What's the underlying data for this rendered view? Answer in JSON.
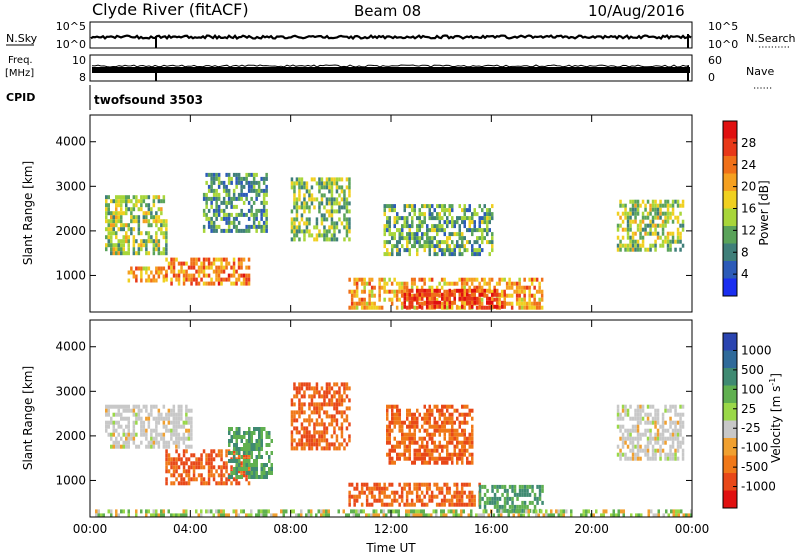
{
  "header": {
    "station": "Clyde River (fitACF)",
    "beam": "Beam 08",
    "date": "10/Aug/2016"
  },
  "aux_panels": {
    "nsky_label": "N.Sky",
    "nsky_ticks": [
      "10^5",
      "10^0"
    ],
    "nsearch_label": "N.Search",
    "nsearch_ticks": [
      "10^5",
      "10^0"
    ],
    "freq_label": "Freq.",
    "freq_unit": "[MHz]",
    "freq_ticks": [
      "10",
      "8"
    ],
    "nave_label": "Nave",
    "nave_ticks": [
      "60",
      "0"
    ],
    "cpid_label": "CPID",
    "cpid_value": "twofsound 3503"
  },
  "chart_data": [
    {
      "type": "heatmap",
      "panel": "power",
      "xlabel": "",
      "ylabel": "Slant Range [km]",
      "x_ticks": [
        "00:00",
        "04:00",
        "08:00",
        "12:00",
        "16:00",
        "20:00",
        "00:00"
      ],
      "xlim_hours": [
        0,
        24
      ],
      "y_ticks": [
        1000,
        2000,
        3000,
        4000
      ],
      "ylim_km": [
        180,
        4600
      ],
      "colorbar": {
        "label": "Power [dB]",
        "ticks": [
          4,
          8,
          12,
          16,
          20,
          24,
          28
        ],
        "range": [
          0,
          32
        ],
        "colors": [
          "#1a2ef0",
          "#2c5bb8",
          "#3f7f7a",
          "#5aa35a",
          "#a8d63a",
          "#f0d020",
          "#f5a020",
          "#f07018",
          "#e83818",
          "#e01010"
        ]
      },
      "regions": [
        {
          "t": [
            0.6,
            3.0
          ],
          "r": [
            1500,
            2800
          ],
          "level": 14
        },
        {
          "t": [
            1.5,
            3.0
          ],
          "r": [
            850,
            1200
          ],
          "level": 20
        },
        {
          "t": [
            3.0,
            6.3
          ],
          "r": [
            850,
            1400
          ],
          "level": 23
        },
        {
          "t": [
            4.5,
            7.0
          ],
          "r": [
            2000,
            3300
          ],
          "level": 10
        },
        {
          "t": [
            8.0,
            10.3
          ],
          "r": [
            1800,
            3200
          ],
          "level": 13
        },
        {
          "t": [
            10.3,
            18.0
          ],
          "r": [
            250,
            950
          ],
          "level": 21
        },
        {
          "t": [
            12.5,
            16.5
          ],
          "r": [
            300,
            700
          ],
          "level": 27
        },
        {
          "t": [
            11.7,
            16.0
          ],
          "r": [
            1500,
            2600
          ],
          "level": 11
        },
        {
          "t": [
            21.0,
            23.6
          ],
          "r": [
            1600,
            2700
          ],
          "level": 14
        }
      ]
    },
    {
      "type": "heatmap",
      "panel": "velocity",
      "xlabel": "Time UT",
      "ylabel": "Slant Range [km]",
      "x_ticks": [
        "00:00",
        "04:00",
        "08:00",
        "12:00",
        "16:00",
        "20:00",
        "00:00"
      ],
      "xlim_hours": [
        0,
        24
      ],
      "y_ticks": [
        1000,
        2000,
        3000,
        4000
      ],
      "ylim_km": [
        180,
        4600
      ],
      "colorbar": {
        "label": "Velocity [m s",
        "label_superscript": "-1",
        "label_close": "]",
        "ticks": [
          1000,
          500,
          100,
          25,
          -25,
          -100,
          -500,
          -1000
        ],
        "colors": [
          "#2a44b0",
          "#2f6a9a",
          "#3f8a72",
          "#60b050",
          "#9ad848",
          "#c8c8c8",
          "#f0a030",
          "#f07818",
          "#e84818",
          "#e01010"
        ]
      },
      "regions": [
        {
          "t": [
            0.6,
            4.0
          ],
          "r": [
            1800,
            2700
          ],
          "v": 0
        },
        {
          "t": [
            3.0,
            6.3
          ],
          "r": [
            900,
            1700
          ],
          "v": -300
        },
        {
          "t": [
            5.5,
            7.2
          ],
          "r": [
            1100,
            2200
          ],
          "v": 300
        },
        {
          "t": [
            8.0,
            10.3
          ],
          "r": [
            1700,
            3200
          ],
          "v": -300
        },
        {
          "t": [
            10.3,
            15.5
          ],
          "r": [
            500,
            950
          ],
          "v": -300
        },
        {
          "t": [
            15.5,
            18.0
          ],
          "r": [
            300,
            900
          ],
          "v": 300
        },
        {
          "t": [
            11.8,
            15.2
          ],
          "r": [
            1400,
            2700
          ],
          "v": -300
        },
        {
          "t": [
            21.0,
            23.6
          ],
          "r": [
            1500,
            2700
          ],
          "v": 0
        },
        {
          "t": [
            0.2,
            24.0
          ],
          "r": [
            180,
            350
          ],
          "v": 60
        }
      ]
    }
  ]
}
